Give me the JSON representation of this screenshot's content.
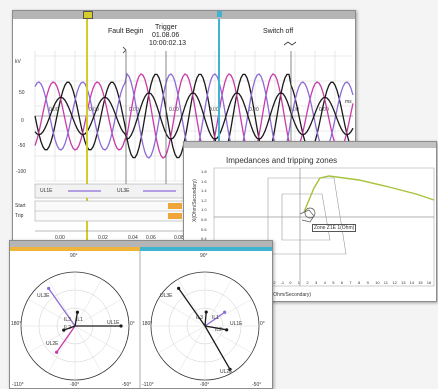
{
  "colors": {
    "yellow": "#d4cc2a",
    "cyan": "#3fb3d0",
    "black": "#1a1a1a",
    "magenta": "#c83aa8",
    "purple": "#8c6bd6",
    "green": "#a6c23a",
    "orange": "#f0a53a"
  },
  "oscillo": {
    "events": {
      "fault": "Fault Begin",
      "trigger": "Trigger",
      "trigger_date": "01.08.06",
      "trigger_time": "10:00:02.13",
      "switch": "Switch off"
    },
    "y_unit": "kV",
    "x_unit": "ms",
    "y_ticks": [
      "50",
      "0",
      "-50",
      "-100"
    ],
    "x_ticks": [
      "0.00",
      "0.00",
      "0.00",
      "0.00",
      "0.00",
      "0.00",
      "0.00",
      "0.00"
    ],
    "legend": [
      "UL1E",
      "UL3E"
    ],
    "digital_labels": [
      "Start",
      "Trip"
    ],
    "bottom_ticks": [
      "0.00",
      "0.02",
      "0.04",
      "0.06",
      "0.08"
    ]
  },
  "impedance": {
    "title": "Impedances and tripping zones",
    "y_label": "X(Ohm/Secondary)",
    "x_label": "R(Ohm/Secondary)",
    "marker_label": "Zone Z1E 1(Ohm)",
    "y_ticks": [
      "1.8",
      "1.6",
      "1.4",
      "1.2",
      "1.0",
      "0.8",
      "0.6",
      "0.4",
      "0.2",
      "0.0",
      "-0.2",
      "-0.4"
    ],
    "x_ticks": [
      "-2",
      "-1",
      "0",
      "1",
      "2",
      "3",
      "4",
      "5",
      "6",
      "7",
      "8",
      "9",
      "10",
      "11",
      "12",
      "13",
      "14",
      "15",
      "16"
    ]
  },
  "phasor": {
    "left": {
      "top": "90°",
      "right": "0°",
      "left": "180°",
      "bottom_left": "-110°",
      "bottom_center": "-90°",
      "bottom_right": "-50°",
      "labels": [
        "UL3E",
        "IL3",
        "IL1",
        "UL1E",
        "IL2",
        "UL2E"
      ]
    },
    "right": {
      "top": "90°",
      "right": "0°",
      "left": "180°",
      "bottom_left": "-110°",
      "bottom_center": "-90°",
      "bottom_right": "-50°",
      "labels": [
        "UL3E",
        "IL3",
        "IL1",
        "UL1E",
        "IL2",
        "UL2E"
      ]
    }
  }
}
